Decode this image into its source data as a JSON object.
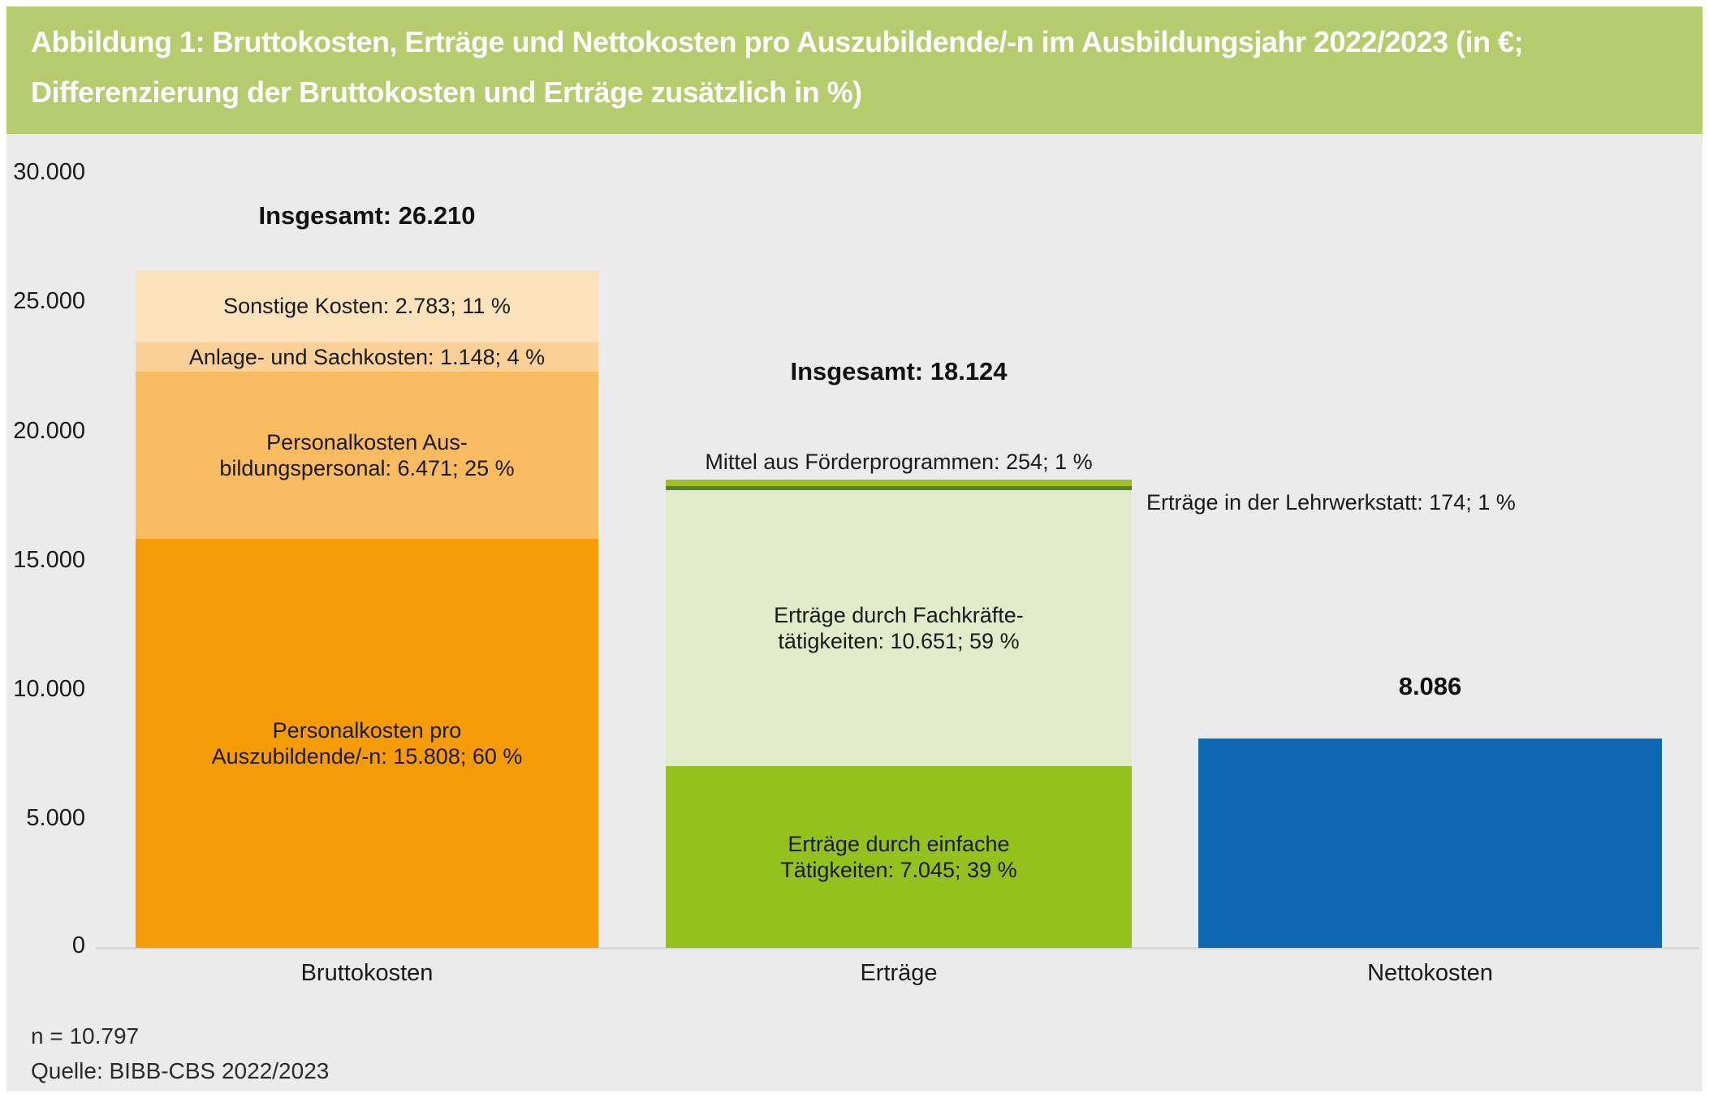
{
  "header": {
    "title_line1": "Abbildung 1: Bruttokosten, Erträge und Nettokosten pro Auszubildende/-n im Ausbildungsjahr 2022/2023 (in €;",
    "title_line2": "Differenzierung der Bruttokosten und Erträge zusätzlich in %)"
  },
  "colors": {
    "header_band": "#b4cb6e",
    "chart_background": "#ebebeb",
    "axis_line": "#d9d9d9"
  },
  "chart_data": {
    "type": "bar",
    "stacked": true,
    "unit": "€ pro Auszubildende/-n",
    "ylim": [
      0,
      30000
    ],
    "grid": false,
    "legend": "none",
    "yticks": [
      "30.000",
      "25.000",
      "20.000",
      "15.000",
      "10.000",
      "5.000",
      "0"
    ],
    "ytick_values": [
      30000,
      25000,
      20000,
      15000,
      10000,
      5000,
      0
    ],
    "categories": [
      "Bruttokosten",
      "Erträge",
      "Nettokosten"
    ],
    "bars": [
      {
        "category": "Bruttokosten",
        "total": 26210,
        "total_label": "Insgesamt: 26.210",
        "segments": [
          {
            "name": "Sonstige Kosten",
            "value": 2783,
            "pct": 11,
            "label": "Sonstige Kosten: 2.783; 11 %",
            "color": "#fce2bb"
          },
          {
            "name": "Anlage- und Sachkosten",
            "value": 1148,
            "pct": 4,
            "label": "Anlage- und Sachkosten: 1.148; 4 %",
            "color": "#fad096"
          },
          {
            "name": "Personalkosten Ausbildungspersonal",
            "value": 6471,
            "pct": 25,
            "label": "Personalkosten Aus-\nbildungspersonal: 6.471; 25 %",
            "color": "#f8bb60"
          },
          {
            "name": "Personalkosten pro Auszubildende/-n",
            "value": 15808,
            "pct": 60,
            "label": "Personalkosten pro\nAuszubildende/-n: 15.808; 60 %",
            "color": "#f49b06"
          }
        ]
      },
      {
        "category": "Erträge",
        "total": 18124,
        "total_label": "Insgesamt: 18.124",
        "segments": [
          {
            "name": "Mittel aus Förderprogrammen",
            "value": 254,
            "pct": 1,
            "label": "Mittel aus Förderprogrammen: 254; 1 %",
            "color": "#a2be27",
            "label_position": "above"
          },
          {
            "name": "Erträge in der Lehrwerkstatt",
            "value": 174,
            "pct": 1,
            "label": "Erträge in der Lehrwerkstatt: 174; 1 %",
            "color": "#587f35",
            "label_position": "right"
          },
          {
            "name": "Erträge durch Fachkräftetätigkeiten",
            "value": 10651,
            "pct": 59,
            "label": "Erträge durch Fachkräfte-\ntätigkeiten: 10.651; 59 %",
            "color": "#e1eac9"
          },
          {
            "name": "Erträge durch einfache Tätigkeiten",
            "value": 7045,
            "pct": 39,
            "label": "Erträge durch einfache\nTätigkeiten: 7.045; 39 %",
            "color": "#95c11f"
          }
        ]
      },
      {
        "category": "Nettokosten",
        "total": 8086,
        "total_label": "8.086",
        "segments": [
          {
            "name": "Nettokosten",
            "value": 8086,
            "label": "",
            "color": "#0e68b2"
          }
        ]
      }
    ]
  },
  "footer": {
    "n_label": "n = 10.797",
    "source": "Quelle: BIBB-CBS 2022/2023"
  }
}
